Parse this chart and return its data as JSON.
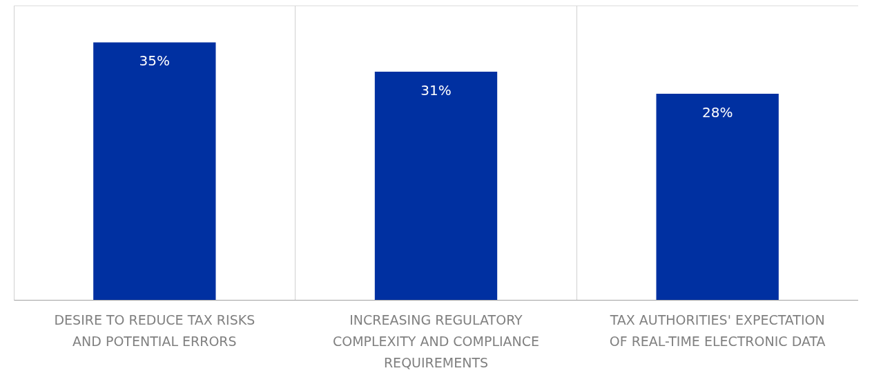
{
  "chart_data": {
    "type": "bar",
    "categories": [
      "DESIRE TO REDUCE TAX RISKS AND POTENTIAL ERRORS",
      "INCREASING REGULATORY COMPLEXITY AND COMPLIANCE REQUIREMENTS",
      "TAX AUTHORITIES' EXPECTATION OF REAL-TIME ELECTRONIC DATA"
    ],
    "values": [
      35,
      31,
      28
    ],
    "value_labels": [
      "35%",
      "31%",
      "28%"
    ],
    "color": "#0030a1",
    "ylim": [
      0,
      40
    ],
    "tick_labels": "x",
    "grid": "x"
  }
}
